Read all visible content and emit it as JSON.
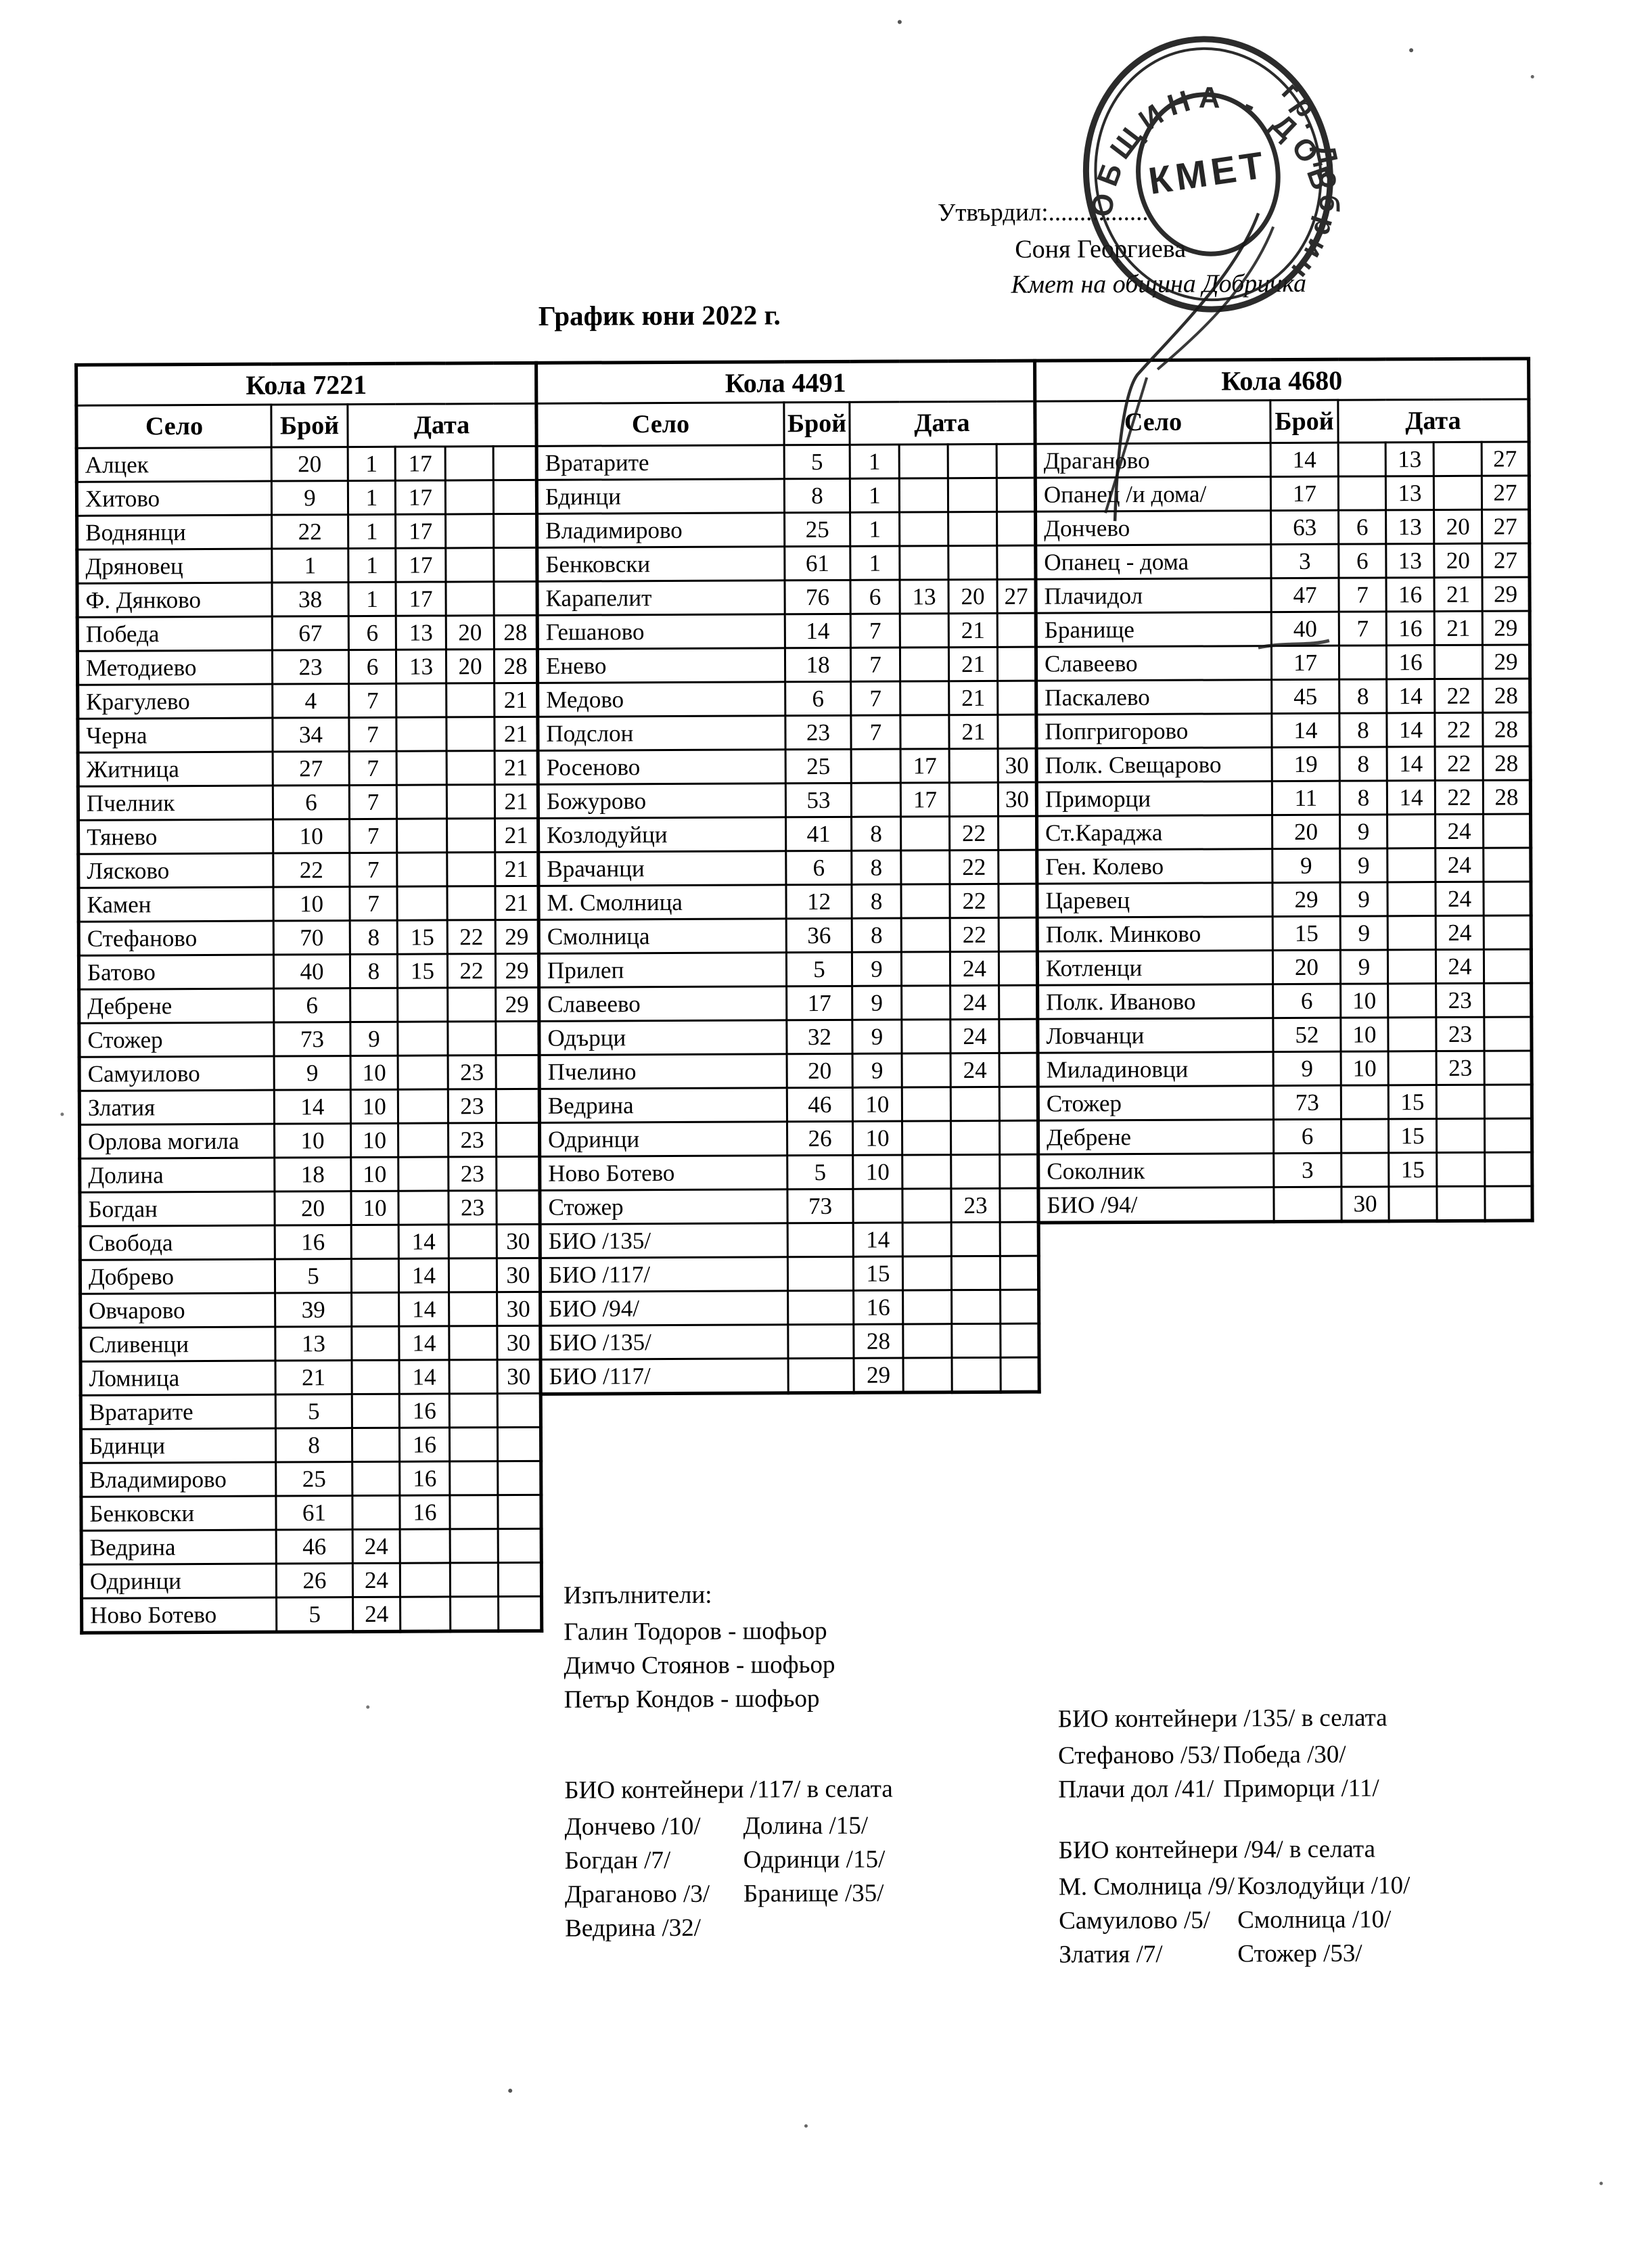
{
  "approval": {
    "label": "Утвърдил:................",
    "signer": "Соня Георгиева",
    "signer_title": "Кмет  на община Добричка"
  },
  "stamp": {
    "center_text": "КМЕТ",
    "arc_top": "ОБЩИНА - ДОБРИЧ",
    "arc_bottom": "гр. Добрич"
  },
  "document_title": "График юни 2022 г.",
  "column_headers": {
    "village": "Село",
    "count": "Брой",
    "date": "Дата"
  },
  "tables": [
    {
      "title": "Кола 7221",
      "rows": [
        [
          "Алцек",
          "20",
          "1",
          "17",
          "",
          ""
        ],
        [
          "Хитово",
          "9",
          "1",
          "17",
          "",
          ""
        ],
        [
          "Воднянци",
          "22",
          "1",
          "17",
          "",
          ""
        ],
        [
          "Дряновец",
          "1",
          "1",
          "17",
          "",
          ""
        ],
        [
          "Ф. Дянково",
          "38",
          "1",
          "17",
          "",
          ""
        ],
        [
          "Победа",
          "67",
          "6",
          "13",
          "20",
          "28"
        ],
        [
          "Методиево",
          "23",
          "6",
          "13",
          "20",
          "28"
        ],
        [
          "Крагулево",
          "4",
          "7",
          "",
          "",
          "21"
        ],
        [
          "Черна",
          "34",
          "7",
          "",
          "",
          "21"
        ],
        [
          "Житница",
          "27",
          "7",
          "",
          "",
          "21"
        ],
        [
          "Пчелник",
          "6",
          "7",
          "",
          "",
          "21"
        ],
        [
          "Тянево",
          "10",
          "7",
          "",
          "",
          "21"
        ],
        [
          "Лясково",
          "22",
          "7",
          "",
          "",
          "21"
        ],
        [
          "Камен",
          "10",
          "7",
          "",
          "",
          "21"
        ],
        [
          "Стефаново",
          "70",
          "8",
          "15",
          "22",
          "29"
        ],
        [
          "Батово",
          "40",
          "8",
          "15",
          "22",
          "29"
        ],
        [
          "Дебрене",
          "6",
          "",
          "",
          "",
          "29"
        ],
        [
          "Стожер",
          "73",
          "9",
          "",
          "",
          ""
        ],
        [
          "Самуилово",
          "9",
          "10",
          "",
          "23",
          ""
        ],
        [
          "Златия",
          "14",
          "10",
          "",
          "23",
          ""
        ],
        [
          "Орлова могила",
          "10",
          "10",
          "",
          "23",
          ""
        ],
        [
          "Долина",
          "18",
          "10",
          "",
          "23",
          ""
        ],
        [
          "Богдан",
          "20",
          "10",
          "",
          "23",
          ""
        ],
        [
          "Свобода",
          "16",
          "",
          "14",
          "",
          "30"
        ],
        [
          "Добрево",
          "5",
          "",
          "14",
          "",
          "30"
        ],
        [
          "Овчарово",
          "39",
          "",
          "14",
          "",
          "30"
        ],
        [
          "Сливенци",
          "13",
          "",
          "14",
          "",
          "30"
        ],
        [
          "Ломница",
          "21",
          "",
          "14",
          "",
          "30"
        ],
        [
          "Вратарите",
          "5",
          "",
          "16",
          "",
          ""
        ],
        [
          "Бдинци",
          "8",
          "",
          "16",
          "",
          ""
        ],
        [
          "Владимирово",
          "25",
          "",
          "16",
          "",
          ""
        ],
        [
          "Бенковски",
          "61",
          "",
          "16",
          "",
          ""
        ],
        [
          "Ведрина",
          "46",
          "24",
          "",
          "",
          ""
        ],
        [
          "Одринци",
          "26",
          "24",
          "",
          "",
          ""
        ],
        [
          "Ново Ботево",
          "5",
          "24",
          "",
          "",
          ""
        ]
      ]
    },
    {
      "title": "Кола 4491",
      "rows": [
        [
          "Вратарите",
          "5",
          "1",
          "",
          "",
          ""
        ],
        [
          "Бдинци",
          "8",
          "1",
          "",
          "",
          ""
        ],
        [
          "Владимирово",
          "25",
          "1",
          "",
          "",
          ""
        ],
        [
          "Бенковски",
          "61",
          "1",
          "",
          "",
          ""
        ],
        [
          "Карапелит",
          "76",
          "6",
          "13",
          "20",
          "27"
        ],
        [
          "Гешаново",
          "14",
          "7",
          "",
          "21",
          ""
        ],
        [
          "Енево",
          "18",
          "7",
          "",
          "21",
          ""
        ],
        [
          "Медово",
          "6",
          "7",
          "",
          "21",
          ""
        ],
        [
          "Подслон",
          "23",
          "7",
          "",
          "21",
          ""
        ],
        [
          "Росеново",
          "25",
          "",
          "17",
          "",
          "30"
        ],
        [
          "Божурово",
          "53",
          "",
          "17",
          "",
          "30"
        ],
        [
          "Козлодуйци",
          "41",
          "8",
          "",
          "22",
          ""
        ],
        [
          "Врачанци",
          "6",
          "8",
          "",
          "22",
          ""
        ],
        [
          "М. Смолница",
          "12",
          "8",
          "",
          "22",
          ""
        ],
        [
          "Смолница",
          "36",
          "8",
          "",
          "22",
          ""
        ],
        [
          "Прилеп",
          "5",
          "9",
          "",
          "24",
          ""
        ],
        [
          "Славеево",
          "17",
          "9",
          "",
          "24",
          ""
        ],
        [
          "Одърци",
          "32",
          "9",
          "",
          "24",
          ""
        ],
        [
          "Пчелино",
          "20",
          "9",
          "",
          "24",
          ""
        ],
        [
          "Ведрина",
          "46",
          "10",
          "",
          "",
          ""
        ],
        [
          "Одринци",
          "26",
          "10",
          "",
          "",
          ""
        ],
        [
          "Ново Ботево",
          "5",
          "10",
          "",
          "",
          ""
        ],
        [
          "Стожер",
          "73",
          "",
          "",
          "23",
          ""
        ],
        [
          "БИО /135/",
          "",
          "14",
          "",
          "",
          ""
        ],
        [
          "БИО /117/",
          "",
          "15",
          "",
          "",
          ""
        ],
        [
          "БИО /94/",
          "",
          "16",
          "",
          "",
          ""
        ],
        [
          "БИО /135/",
          "",
          "28",
          "",
          "",
          ""
        ],
        [
          "БИО /117/",
          "",
          "29",
          "",
          "",
          ""
        ]
      ]
    },
    {
      "title": "Кола 4680",
      "rows": [
        [
          "Драганово",
          "14",
          "",
          "13",
          "",
          "27"
        ],
        [
          "Опанец /и дома/",
          "17",
          "",
          "13",
          "",
          "27"
        ],
        [
          "Дончево",
          "63",
          "6",
          "13",
          "20",
          "27"
        ],
        [
          "Опанец - дома",
          "3",
          "6",
          "13",
          "20",
          "27"
        ],
        [
          "Плачидол",
          "47",
          "7",
          "16",
          "21",
          "29"
        ],
        [
          "Бранище",
          "40",
          "7",
          "16",
          "21",
          "29"
        ],
        [
          "Славеево",
          "17",
          "",
          "16",
          "",
          "29"
        ],
        [
          "Паскалево",
          "45",
          "8",
          "14",
          "22",
          "28"
        ],
        [
          "Попгригорово",
          "14",
          "8",
          "14",
          "22",
          "28"
        ],
        [
          "Полк. Свещарово",
          "19",
          "8",
          "14",
          "22",
          "28"
        ],
        [
          "Приморци",
          "11",
          "8",
          "14",
          "22",
          "28"
        ],
        [
          "Ст.Караджа",
          "20",
          "9",
          "",
          "24",
          ""
        ],
        [
          "Ген. Колево",
          "9",
          "9",
          "",
          "24",
          ""
        ],
        [
          "Царевец",
          "29",
          "9",
          "",
          "24",
          ""
        ],
        [
          "Полк. Минково",
          "15",
          "9",
          "",
          "24",
          ""
        ],
        [
          "Котленци",
          "20",
          "9",
          "",
          "24",
          ""
        ],
        [
          "Полк. Иваново",
          "6",
          "10",
          "",
          "23",
          ""
        ],
        [
          "Ловчанци",
          "52",
          "10",
          "",
          "23",
          ""
        ],
        [
          "Миладиновци",
          "9",
          "10",
          "",
          "23",
          ""
        ],
        [
          "Стожер",
          "73",
          "",
          "15",
          "",
          ""
        ],
        [
          "Дебрене",
          "6",
          "",
          "15",
          "",
          ""
        ],
        [
          "Соколник",
          "3",
          "",
          "15",
          "",
          ""
        ],
        [
          "БИО /94/",
          "",
          "30",
          "",
          "",
          ""
        ]
      ]
    }
  ],
  "executors": {
    "heading": "Изпълнители:",
    "drivers": [
      "Галин Тодоров - шофьор",
      "Димчо Стоянов - шофьор",
      "Петър Кондов - шофьор"
    ]
  },
  "bio_sections": [
    {
      "heading": "БИО контейнери /117/ в селата",
      "left_column": [
        "Дончево /10/",
        "Богдан /7/",
        "Драганово /3/",
        "Ведрина /32/"
      ],
      "right_column": [
        "Долина /15/",
        "Одринци /15/",
        "Бранище /35/"
      ]
    },
    {
      "heading": "БИО контейнери /135/ в селата",
      "left_column": [
        "Стефаново /53/",
        "Плачи дол /41/"
      ],
      "right_column": [
        "Победа /30/",
        "Приморци /11/"
      ]
    },
    {
      "heading": "БИО контейнери /94/ в селата",
      "left_column": [
        "М. Смолница /9/",
        "Самуилово /5/",
        "Златия /7/"
      ],
      "right_column": [
        "Козлодуйци /10/",
        "Смолница /10/",
        "Стожер /53/"
      ]
    }
  ],
  "colors": {
    "ink": "#000000",
    "paper": "#ffffff"
  }
}
